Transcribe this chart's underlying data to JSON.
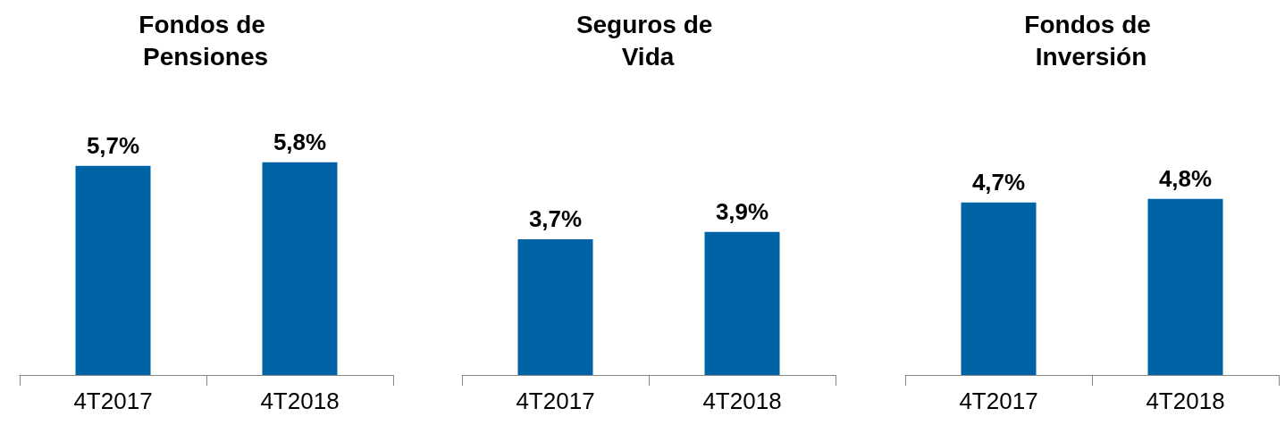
{
  "chart_data": [
    {
      "type": "bar",
      "title": "Fondos de Pensiones",
      "categories": [
        "4T2017",
        "4T2018"
      ],
      "values": [
        5.7,
        5.8
      ],
      "value_labels": [
        "5,7%",
        "5,8%"
      ],
      "color": "#0063a6",
      "tick_labels": "x"
    },
    {
      "type": "bar",
      "title": "Seguros de Vida",
      "categories": [
        "4T2017",
        "4T2018"
      ],
      "values": [
        3.7,
        3.9
      ],
      "value_labels": [
        "3,7%",
        "3,9%"
      ],
      "color": "#0063a6",
      "tick_labels": "x"
    },
    {
      "type": "bar",
      "title": "Fondos de Inversión",
      "categories": [
        "4T2017",
        "4T2018"
      ],
      "values": [
        4.7,
        4.8
      ],
      "value_labels": [
        "4,7%",
        "4,8%"
      ],
      "color": "#0063a6",
      "tick_labels": "x"
    }
  ]
}
